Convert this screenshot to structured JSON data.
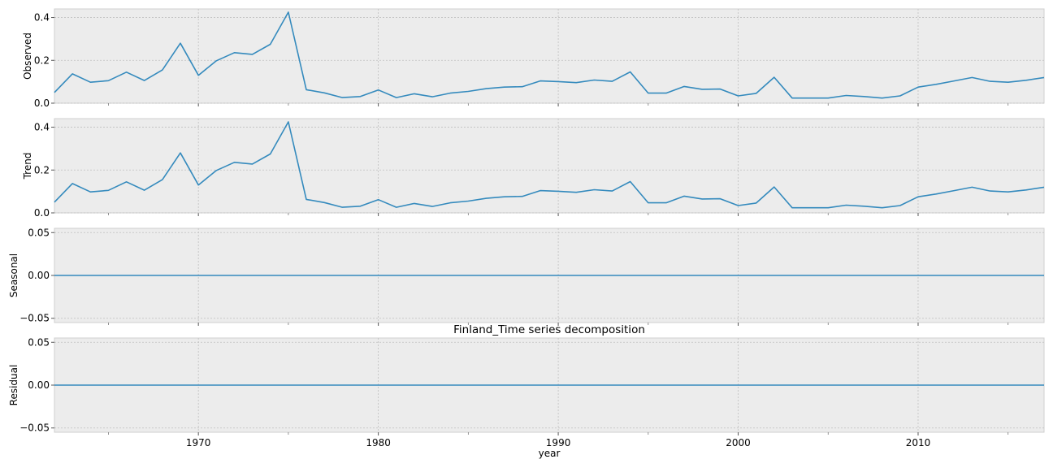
{
  "chart_data": {
    "type": "line",
    "title": "Finland_Time series decomposition",
    "xlabel": "year",
    "xlim": [
      1962,
      2017
    ],
    "x_ticks": [
      1970,
      1980,
      1990,
      2000,
      2010
    ],
    "x_tick_labels": [
      "1970",
      "1980",
      "1990",
      "2000",
      "2010"
    ],
    "grid": true,
    "line_color": "#348abd",
    "panel_background": "#ececec",
    "x": [
      1962,
      1963,
      1964,
      1965,
      1966,
      1967,
      1968,
      1969,
      1970,
      1971,
      1972,
      1973,
      1974,
      1975,
      1976,
      1977,
      1978,
      1979,
      1980,
      1981,
      1982,
      1983,
      1984,
      1985,
      1986,
      1987,
      1988,
      1989,
      1990,
      1991,
      1992,
      1993,
      1994,
      1995,
      1996,
      1997,
      1998,
      1999,
      2000,
      2001,
      2002,
      2003,
      2004,
      2005,
      2006,
      2007,
      2008,
      2009,
      2010,
      2011,
      2012,
      2013,
      2014,
      2015,
      2016,
      2017
    ],
    "panels": [
      {
        "ylabel": "Observed",
        "ylim": [
          0,
          0.44
        ],
        "y_ticks": [
          0,
          0.2,
          0.4
        ],
        "y_tick_labels": [
          "0.0",
          "0.2",
          "0.4"
        ],
        "values": [
          0.05,
          0.137,
          0.098,
          0.105,
          0.145,
          0.106,
          0.155,
          0.28,
          0.13,
          0.198,
          0.236,
          0.228,
          0.275,
          0.425,
          0.063,
          0.048,
          0.026,
          0.031,
          0.062,
          0.026,
          0.044,
          0.03,
          0.047,
          0.055,
          0.068,
          0.075,
          0.077,
          0.104,
          0.101,
          0.096,
          0.108,
          0.102,
          0.146,
          0.047,
          0.047,
          0.078,
          0.065,
          0.066,
          0.034,
          0.046,
          0.121,
          0.024,
          0.024,
          0.024,
          0.036,
          0.031,
          0.024,
          0.034,
          0.075,
          0.088,
          0.104,
          0.12,
          0.102,
          0.098,
          0.107,
          0.12
        ]
      },
      {
        "ylabel": "Trend",
        "ylim": [
          0,
          0.44
        ],
        "y_ticks": [
          0,
          0.2,
          0.4
        ],
        "y_tick_labels": [
          "0.0",
          "0.2",
          "0.4"
        ],
        "values": [
          0.05,
          0.137,
          0.098,
          0.105,
          0.145,
          0.106,
          0.155,
          0.28,
          0.13,
          0.198,
          0.236,
          0.228,
          0.275,
          0.425,
          0.063,
          0.048,
          0.026,
          0.031,
          0.062,
          0.026,
          0.044,
          0.03,
          0.047,
          0.055,
          0.068,
          0.075,
          0.077,
          0.104,
          0.101,
          0.096,
          0.108,
          0.102,
          0.146,
          0.047,
          0.047,
          0.078,
          0.065,
          0.066,
          0.034,
          0.046,
          0.121,
          0.024,
          0.024,
          0.024,
          0.036,
          0.031,
          0.024,
          0.034,
          0.075,
          0.088,
          0.104,
          0.12,
          0.102,
          0.098,
          0.107,
          0.12
        ]
      },
      {
        "ylabel": "Seasonal",
        "ylim": [
          -0.055,
          0.055
        ],
        "y_ticks": [
          -0.05,
          0,
          0.05
        ],
        "y_tick_labels": [
          "−0.05",
          "0.00",
          "0.05"
        ],
        "values": [
          0,
          0,
          0,
          0,
          0,
          0,
          0,
          0,
          0,
          0,
          0,
          0,
          0,
          0,
          0,
          0,
          0,
          0,
          0,
          0,
          0,
          0,
          0,
          0,
          0,
          0,
          0,
          0,
          0,
          0,
          0,
          0,
          0,
          0,
          0,
          0,
          0,
          0,
          0,
          0,
          0,
          0,
          0,
          0,
          0,
          0,
          0,
          0,
          0,
          0,
          0,
          0,
          0,
          0,
          0,
          0
        ]
      },
      {
        "ylabel": "Residual",
        "ylim": [
          -0.055,
          0.055
        ],
        "y_ticks": [
          -0.05,
          0,
          0.05
        ],
        "y_tick_labels": [
          "−0.05",
          "0.00",
          "0.05"
        ],
        "values": [
          0,
          0,
          0,
          0,
          0,
          0,
          0,
          0,
          0,
          0,
          0,
          0,
          0,
          0,
          0,
          0,
          0,
          0,
          0,
          0,
          0,
          0,
          0,
          0,
          0,
          0,
          0,
          0,
          0,
          0,
          0,
          0,
          0,
          0,
          0,
          0,
          0,
          0,
          0,
          0,
          0,
          0,
          0,
          0,
          0,
          0,
          0,
          0,
          0,
          0,
          0,
          0,
          0,
          0,
          0,
          0
        ]
      }
    ]
  }
}
